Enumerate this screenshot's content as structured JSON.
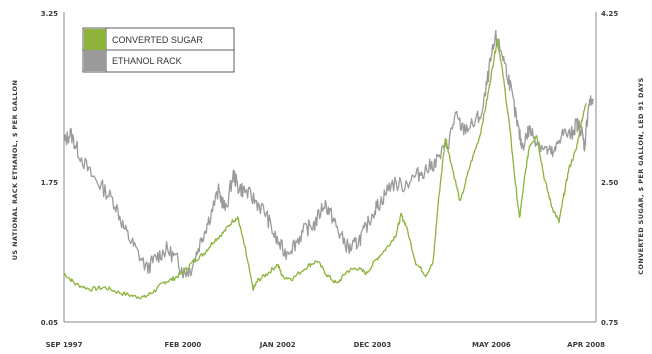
{
  "chart_data": {
    "type": "line",
    "title": "",
    "ylabel_left": "US NATIONAL RACK ETHANOL, $ PER GALLON",
    "ylabel_right": "CONVERTED SUGAR, $ PER GALLON, LED 91 DAYS",
    "x_tick_labels": [
      "SEP 1997",
      "FEB 2000",
      "JAN 2002",
      "DEC 2003",
      "MAY 2006",
      "APR 2008"
    ],
    "x_tick_positions": [
      1997.67,
      2000.08,
      2002.0,
      2003.92,
      2006.33,
      2008.25
    ],
    "x_range": [
      1997.67,
      2008.45
    ],
    "left_axis": {
      "range": [
        0.05,
        3.25
      ],
      "tick_labels": [
        "3.25",
        "1.75",
        "0.05"
      ],
      "tick_values": [
        3.25,
        1.75,
        0.05
      ]
    },
    "right_axis": {
      "range": [
        0.75,
        4.25
      ],
      "tick_labels": [
        "4.25",
        "2.50",
        "0.75"
      ],
      "tick_values": [
        4.25,
        2.5,
        0.75
      ]
    },
    "grid": false,
    "legend_position": "top-left",
    "series": [
      {
        "name": "CONVERTED SUGAR",
        "axis": "right",
        "color": "#8db33a",
        "points": [
          [
            1997.67,
            1.3
          ],
          [
            1997.9,
            1.18
          ],
          [
            1998.2,
            1.12
          ],
          [
            1998.5,
            1.14
          ],
          [
            1998.8,
            1.08
          ],
          [
            1999.1,
            1.04
          ],
          [
            1999.3,
            1.03
          ],
          [
            1999.5,
            1.1
          ],
          [
            1999.7,
            1.2
          ],
          [
            1999.9,
            1.24
          ],
          [
            2000.1,
            1.32
          ],
          [
            2000.3,
            1.44
          ],
          [
            2000.5,
            1.52
          ],
          [
            2000.7,
            1.66
          ],
          [
            2000.9,
            1.76
          ],
          [
            2001.1,
            1.9
          ],
          [
            2001.2,
            1.92
          ],
          [
            2001.35,
            1.55
          ],
          [
            2001.5,
            1.12
          ],
          [
            2001.6,
            1.22
          ],
          [
            2001.8,
            1.3
          ],
          [
            2002.0,
            1.4
          ],
          [
            2002.1,
            1.26
          ],
          [
            2002.3,
            1.24
          ],
          [
            2002.6,
            1.38
          ],
          [
            2002.8,
            1.44
          ],
          [
            2003.0,
            1.28
          ],
          [
            2003.2,
            1.18
          ],
          [
            2003.4,
            1.32
          ],
          [
            2003.6,
            1.36
          ],
          [
            2003.8,
            1.3
          ],
          [
            2004.0,
            1.46
          ],
          [
            2004.2,
            1.58
          ],
          [
            2004.4,
            1.74
          ],
          [
            2004.5,
            1.96
          ],
          [
            2004.6,
            1.84
          ],
          [
            2004.8,
            1.42
          ],
          [
            2005.0,
            1.28
          ],
          [
            2005.15,
            1.42
          ],
          [
            2005.25,
            2.08
          ],
          [
            2005.4,
            2.84
          ],
          [
            2005.5,
            2.58
          ],
          [
            2005.7,
            2.1
          ],
          [
            2005.9,
            2.52
          ],
          [
            2006.1,
            2.86
          ],
          [
            2006.25,
            3.28
          ],
          [
            2006.35,
            3.62
          ],
          [
            2006.45,
            3.94
          ],
          [
            2006.55,
            3.6
          ],
          [
            2006.7,
            2.96
          ],
          [
            2006.8,
            2.4
          ],
          [
            2006.9,
            1.92
          ],
          [
            2007.0,
            2.36
          ],
          [
            2007.1,
            2.74
          ],
          [
            2007.25,
            2.86
          ],
          [
            2007.4,
            2.38
          ],
          [
            2007.55,
            2.06
          ],
          [
            2007.7,
            1.88
          ],
          [
            2007.8,
            2.18
          ],
          [
            2007.9,
            2.48
          ],
          [
            2008.05,
            2.7
          ],
          [
            2008.15,
            3.0
          ],
          [
            2008.25,
            3.22
          ]
        ]
      },
      {
        "name": "ETHANOL RACK",
        "axis": "left",
        "color": "#9a9a9a",
        "points": [
          [
            1997.67,
            1.9
          ],
          [
            1997.8,
            2.0
          ],
          [
            1997.95,
            1.82
          ],
          [
            1998.2,
            1.58
          ],
          [
            1998.45,
            1.44
          ],
          [
            1998.7,
            1.28
          ],
          [
            1998.9,
            1.0
          ],
          [
            1999.1,
            0.82
          ],
          [
            1999.35,
            0.6
          ],
          [
            1999.55,
            0.72
          ],
          [
            1999.75,
            0.8
          ],
          [
            1999.95,
            0.7
          ],
          [
            2000.1,
            0.56
          ],
          [
            2000.25,
            0.6
          ],
          [
            2000.45,
            0.9
          ],
          [
            2000.6,
            1.1
          ],
          [
            2000.8,
            1.4
          ],
          [
            2000.95,
            1.2
          ],
          [
            2001.1,
            1.58
          ],
          [
            2001.2,
            1.44
          ],
          [
            2001.35,
            1.4
          ],
          [
            2001.55,
            1.3
          ],
          [
            2001.75,
            1.18
          ],
          [
            2001.95,
            0.92
          ],
          [
            2002.15,
            0.76
          ],
          [
            2002.35,
            0.86
          ],
          [
            2002.55,
            1.0
          ],
          [
            2002.75,
            1.06
          ],
          [
            2002.95,
            1.28
          ],
          [
            2003.1,
            1.14
          ],
          [
            2003.25,
            0.96
          ],
          [
            2003.45,
            0.8
          ],
          [
            2003.6,
            0.86
          ],
          [
            2003.75,
            0.98
          ],
          [
            2003.95,
            1.2
          ],
          [
            2004.1,
            1.3
          ],
          [
            2004.3,
            1.48
          ],
          [
            2004.55,
            1.46
          ],
          [
            2004.8,
            1.56
          ],
          [
            2005.0,
            1.62
          ],
          [
            2005.2,
            1.7
          ],
          [
            2005.45,
            1.88
          ],
          [
            2005.6,
            2.18
          ],
          [
            2005.75,
            2.04
          ],
          [
            2005.95,
            2.08
          ],
          [
            2006.15,
            2.22
          ],
          [
            2006.3,
            2.7
          ],
          [
            2006.42,
            2.98
          ],
          [
            2006.55,
            2.82
          ],
          [
            2006.7,
            2.52
          ],
          [
            2006.85,
            2.1
          ],
          [
            2006.95,
            1.86
          ],
          [
            2007.1,
            2.04
          ],
          [
            2007.25,
            1.92
          ],
          [
            2007.45,
            1.82
          ],
          [
            2007.6,
            1.78
          ],
          [
            2007.75,
            2.0
          ],
          [
            2007.95,
            1.98
          ],
          [
            2008.05,
            2.1
          ],
          [
            2008.15,
            2.04
          ],
          [
            2008.22,
            1.86
          ],
          [
            2008.3,
            2.3
          ],
          [
            2008.4,
            2.34
          ]
        ]
      }
    ]
  }
}
